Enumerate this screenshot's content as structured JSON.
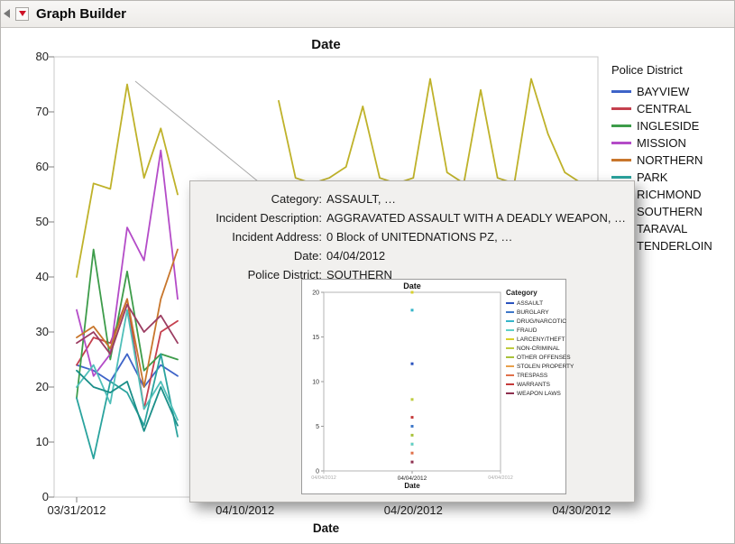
{
  "window": {
    "title": "Graph Builder"
  },
  "tooltip": {
    "rows": [
      {
        "label": "Category:",
        "value": "ASSAULT, …"
      },
      {
        "label": "Incident Description:",
        "value": "AGGRAVATED ASSAULT WITH A DEADLY WEAPON, …"
      },
      {
        "label": "Incident Address:",
        "value": "0 Block of UNITEDNATIONS PZ, …"
      },
      {
        "label": "Date:",
        "value": "04/04/2012"
      },
      {
        "label": "Police District:",
        "value": "SOUTHERN"
      }
    ]
  },
  "chart_data": [
    {
      "type": "line",
      "title": "Date",
      "xlabel": "Date",
      "ylabel": "",
      "ylim": [
        0,
        80
      ],
      "y_ticks": [
        0,
        10,
        20,
        30,
        40,
        50,
        60,
        70,
        80
      ],
      "x_tick_labels": [
        "03/31/2012",
        "04/10/2012",
        "04/20/2012",
        "04/30/2012"
      ],
      "x_tick_days": [
        0,
        10,
        20,
        30
      ],
      "grid": false,
      "legend_title": "Police District",
      "legend_position": "right",
      "series": [
        {
          "name": "BAYVIEW",
          "color": "#3E64C8",
          "values": [
            24,
            23,
            21,
            26,
            20,
            24,
            22
          ]
        },
        {
          "name": "CENTRAL",
          "color": "#C5404E",
          "values": [
            24,
            29,
            28,
            36,
            16,
            30,
            32
          ]
        },
        {
          "name": "INGLESIDE",
          "color": "#3D9C4A",
          "values": [
            18,
            45,
            25,
            41,
            23,
            26,
            25
          ]
        },
        {
          "name": "MISSION",
          "color": "#B44CC8",
          "values": [
            34,
            22,
            26,
            49,
            43,
            63,
            36
          ]
        },
        {
          "name": "NORTHERN",
          "color": "#C8762C",
          "values": [
            29,
            31,
            27,
            36,
            20,
            36,
            45
          ]
        },
        {
          "name": "PARK",
          "color": "#2AA39E",
          "values": [
            18,
            7,
            21,
            19,
            13,
            26,
            11
          ]
        },
        {
          "name": "RICHMOND",
          "color": "#4FBFB9",
          "values": [
            20,
            24,
            17,
            34,
            16,
            21,
            14
          ]
        },
        {
          "name": "SOUTHERN",
          "color": "#BFB22A",
          "values": [
            40,
            57,
            56,
            75,
            58,
            67,
            55,
            null,
            null,
            null,
            null,
            null,
            72,
            58,
            57,
            58,
            60,
            71,
            58,
            57,
            58,
            76,
            59,
            57,
            74,
            58,
            57,
            76,
            66,
            59,
            57
          ]
        },
        {
          "name": "TARAVAL",
          "color": "#1B8F89",
          "values": [
            23,
            20,
            19,
            21,
            12,
            20,
            13
          ]
        },
        {
          "name": "TENDERLOIN",
          "color": "#9C3D62",
          "values": [
            28,
            30,
            26,
            35,
            30,
            33,
            28
          ]
        }
      ]
    },
    {
      "type": "scatter",
      "title": "Date",
      "xlabel": "Date",
      "ylim": [
        0,
        20
      ],
      "y_ticks": [
        0,
        5,
        10,
        15,
        20
      ],
      "x_tick_labels": [
        "04/04/2012"
      ],
      "x_edge_labels": [
        "04/04/2012",
        "04/04/2012"
      ],
      "legend_title": "Category",
      "legend_position": "right",
      "legend": [
        {
          "label": "ASSAULT",
          "color": "#2A52BE"
        },
        {
          "label": "BURGLARY",
          "color": "#3E77C9"
        },
        {
          "label": "DRUG/NARCOTIC",
          "color": "#35B5C9"
        },
        {
          "label": "FRAUD",
          "color": "#5FD0C8"
        },
        {
          "label": "LARCENY/THEFT",
          "color": "#D8D02A"
        },
        {
          "label": "NON-CRIMINAL",
          "color": "#BFCC3E"
        },
        {
          "label": "OTHER OFFENSES",
          "color": "#A8C23A"
        },
        {
          "label": "STOLEN PROPERTY",
          "color": "#E8A04A"
        },
        {
          "label": "TRESPASS",
          "color": "#E0704A"
        },
        {
          "label": "WARRANTS",
          "color": "#C53A3A"
        },
        {
          "label": "WEAPON LAWS",
          "color": "#8E2F4F"
        }
      ],
      "points": [
        {
          "category": "LARCENY/THEFT",
          "value": 20,
          "color": "#D8D02A"
        },
        {
          "category": "DRUG/NARCOTIC",
          "value": 18,
          "color": "#35B5C9"
        },
        {
          "category": "ASSAULT",
          "value": 12,
          "color": "#2A52BE"
        },
        {
          "category": "NON-CRIMINAL",
          "value": 8,
          "color": "#BFCC3E"
        },
        {
          "category": "WARRANTS",
          "value": 6,
          "color": "#C53A3A"
        },
        {
          "category": "BURGLARY",
          "value": 5,
          "color": "#3E77C9"
        },
        {
          "category": "OTHER OFFENSES",
          "value": 4,
          "color": "#A8C23A"
        },
        {
          "category": "STOLEN PROPERTY",
          "value": 3,
          "color": "#E8A04A"
        },
        {
          "category": "FRAUD",
          "value": 3,
          "color": "#5FD0C8"
        },
        {
          "category": "TRESPASS",
          "value": 2,
          "color": "#E0704A"
        },
        {
          "category": "WEAPON LAWS",
          "value": 1,
          "color": "#8E2F4F"
        }
      ]
    }
  ]
}
